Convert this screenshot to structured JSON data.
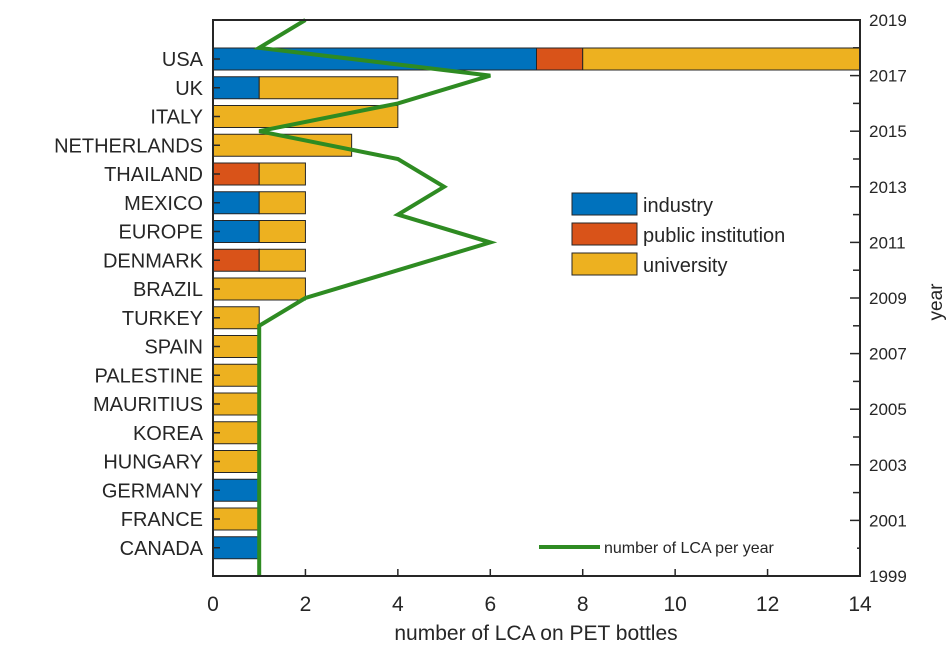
{
  "chart_data": {
    "type": "bar",
    "orientation": "horizontal",
    "stacked": true,
    "title": "",
    "xlabel": "number of LCA on PET bottles",
    "ylabel": "",
    "y2label": "year",
    "xlim": [
      0,
      14
    ],
    "xticks": [
      "0",
      "2",
      "4",
      "6",
      "8",
      "10",
      "12",
      "14"
    ],
    "y2lim": [
      1999,
      2019
    ],
    "y2ticks": [
      "1999",
      "2001",
      "2003",
      "2005",
      "2007",
      "2009",
      "2011",
      "2013",
      "2015",
      "2017",
      "2019"
    ],
    "grid": false,
    "legend_position": "center-right",
    "categories": [
      "USA",
      "UK",
      "ITALY",
      "NETHERLANDS",
      "THAILAND",
      "MEXICO",
      "EUROPE",
      "DENMARK",
      "BRAZIL",
      "TURKEY",
      "SPAIN",
      "PALESTINE",
      "MAURITIUS",
      "KOREA",
      "HUNGARY",
      "GERMANY",
      "FRANCE",
      "CANADA"
    ],
    "series": [
      {
        "name": "industry",
        "color": "#0072BD",
        "values": [
          7,
          1,
          0,
          0,
          0,
          1,
          1,
          0,
          0,
          0,
          0,
          0,
          0,
          0,
          0,
          1,
          0,
          1
        ]
      },
      {
        "name": "public institution",
        "color": "#D95319",
        "values": [
          1,
          0,
          0,
          0,
          1,
          0,
          0,
          1,
          0,
          0,
          0,
          0,
          0,
          0,
          0,
          0,
          0,
          0
        ]
      },
      {
        "name": "university",
        "color": "#EDB120",
        "values": [
          6,
          3,
          4,
          3,
          1,
          1,
          1,
          1,
          2,
          1,
          1,
          1,
          1,
          1,
          1,
          0,
          1,
          0
        ]
      }
    ],
    "line_series": {
      "name": "number of LCA per year",
      "color": "#2E8B22",
      "axis": "right",
      "x": [
        1,
        1,
        1,
        1,
        1,
        1,
        1,
        1,
        1,
        1,
        2,
        4,
        6,
        4,
        5,
        4,
        1,
        4,
        6,
        1,
        2
      ],
      "years": [
        1999,
        2000,
        2001,
        2002,
        2003,
        2004,
        2005,
        2006,
        2007,
        2008,
        2009,
        2010,
        2011,
        2012,
        2013,
        2014,
        2015,
        2016,
        2017,
        2018,
        2019
      ]
    }
  }
}
